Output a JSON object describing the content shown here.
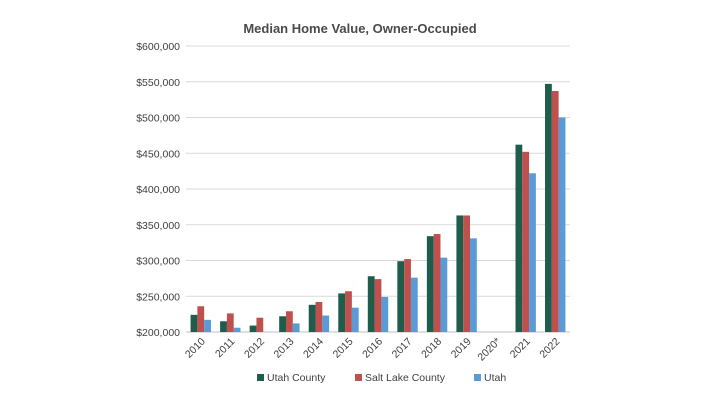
{
  "chart_data": {
    "type": "bar",
    "title": "Median Home Value, Owner-Occupied",
    "xlabel": "",
    "ylabel": "",
    "categories": [
      "2010",
      "2011",
      "2012",
      "2013",
      "2014",
      "2015",
      "2016",
      "2017",
      "2018",
      "2019",
      "2020*",
      "2021",
      "2022"
    ],
    "series": [
      {
        "name": "Utah County",
        "color": "#1e5c4b",
        "values": [
          224000,
          215000,
          209000,
          222000,
          238000,
          254000,
          278000,
          299000,
          334000,
          363000,
          null,
          462000,
          547000
        ]
      },
      {
        "name": "Salt Lake County",
        "color": "#c0504d",
        "values": [
          236000,
          226000,
          220000,
          229000,
          242000,
          257000,
          274000,
          302000,
          337000,
          363000,
          null,
          452000,
          537000
        ]
      },
      {
        "name": "Utah",
        "color": "#5b9bd5",
        "values": [
          217000,
          206000,
          200000,
          212000,
          223000,
          234000,
          249000,
          276000,
          304000,
          331000,
          null,
          422000,
          500000
        ]
      }
    ],
    "ylim": [
      200000,
      600000
    ],
    "yticks": [
      200000,
      250000,
      300000,
      350000,
      400000,
      450000,
      500000,
      550000,
      600000
    ],
    "ytick_labels": [
      "$200,000",
      "$250,000",
      "$300,000",
      "$350,000",
      "$400,000",
      "$450,000",
      "$500,000",
      "$550,000",
      "$600,000"
    ],
    "grid": true,
    "legend_position": "bottom"
  }
}
